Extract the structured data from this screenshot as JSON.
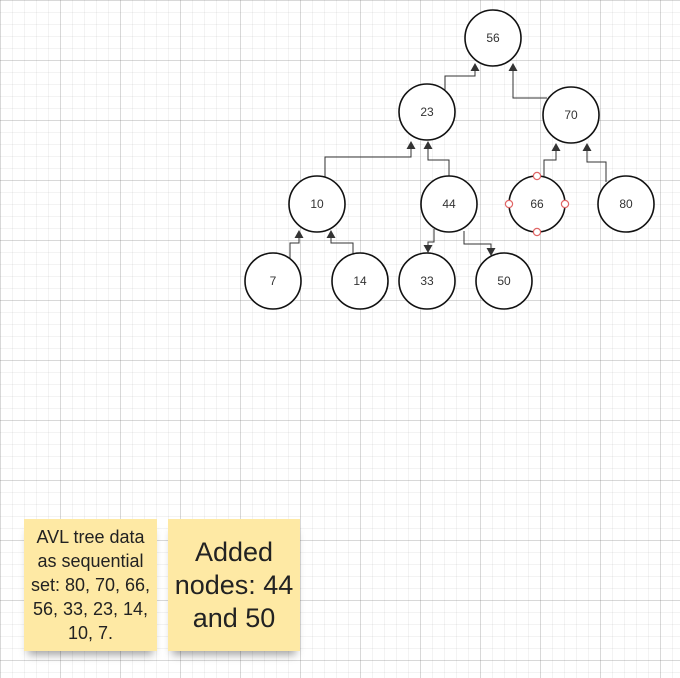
{
  "diagram": {
    "nodes": [
      {
        "id": "n56",
        "label": "56"
      },
      {
        "id": "n23",
        "label": "23"
      },
      {
        "id": "n70",
        "label": "70"
      },
      {
        "id": "n10",
        "label": "10"
      },
      {
        "id": "n44",
        "label": "44"
      },
      {
        "id": "n66",
        "label": "66",
        "selected": true
      },
      {
        "id": "n80",
        "label": "80"
      },
      {
        "id": "n7",
        "label": "7"
      },
      {
        "id": "n14",
        "label": "14"
      },
      {
        "id": "n33",
        "label": "33"
      },
      {
        "id": "n50",
        "label": "50"
      }
    ],
    "edges": [
      {
        "from": "n23",
        "to": "n56"
      },
      {
        "from": "n70",
        "to": "n56"
      },
      {
        "from": "n10",
        "to": "n23"
      },
      {
        "from": "n44",
        "to": "n23"
      },
      {
        "from": "n66",
        "to": "n70"
      },
      {
        "from": "n80",
        "to": "n70"
      },
      {
        "from": "n7",
        "to": "n10"
      },
      {
        "from": "n14",
        "to": "n10"
      },
      {
        "from": "n44",
        "to": "n33"
      },
      {
        "from": "n44",
        "to": "n50"
      }
    ]
  },
  "notes": {
    "note1": "AVL tree data as sequential set: 80, 70, 66, 56, 33, 23, 14, 10, 7.",
    "note2": "Added nodes: 44 and 50"
  },
  "colors": {
    "node_stroke": "#111111",
    "connector": "#333333",
    "selection_handle": "#e06666",
    "sticky_note": "#fee9a4"
  }
}
